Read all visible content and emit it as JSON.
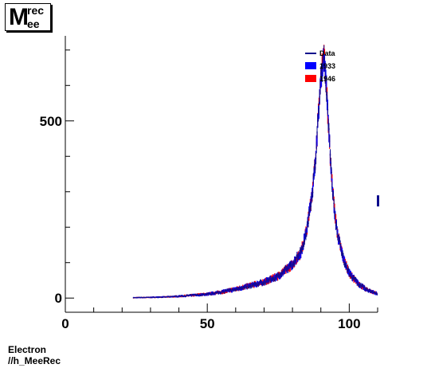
{
  "title": {
    "main": "M",
    "sup": "rec",
    "sub": "ee"
  },
  "caption": {
    "line1": "Electron",
    "line2": "//h_MeeRec"
  },
  "chart_data": {
    "type": "histogram",
    "xlim": [
      0,
      110
    ],
    "ylim": [
      -40,
      740
    ],
    "x_ticks": [
      0,
      50,
      100
    ],
    "y_ticks": [
      0,
      500
    ],
    "legend": {
      "placement": "top-right",
      "entries": [
        {
          "label": "Data",
          "style": "line",
          "color": "#0b0b8c"
        },
        {
          "label": "1933",
          "style": "fill",
          "color": "#0000ff"
        },
        {
          "label": "1946",
          "style": "fill",
          "color": "#ff0000"
        }
      ]
    },
    "series": [
      {
        "name": "Data",
        "color": "#0b0b8c"
      },
      {
        "name": "1933",
        "color": "#0000ff"
      },
      {
        "name": "1946",
        "color": "#ff0000"
      }
    ],
    "curve": {
      "x_range": [
        24,
        110
      ],
      "points": [
        [
          24,
          1
        ],
        [
          30,
          2
        ],
        [
          35,
          3
        ],
        [
          40,
          5
        ],
        [
          45,
          8
        ],
        [
          50,
          11
        ],
        [
          55,
          17
        ],
        [
          60,
          25
        ],
        [
          65,
          35
        ],
        [
          70,
          45
        ],
        [
          75,
          62
        ],
        [
          80,
          95
        ],
        [
          83,
          130
        ],
        [
          85,
          190
        ],
        [
          87,
          300
        ],
        [
          88,
          380
        ],
        [
          89,
          500
        ],
        [
          90,
          620
        ],
        [
          90.8,
          675
        ],
        [
          91.2,
          680
        ],
        [
          92,
          590
        ],
        [
          93,
          440
        ],
        [
          94,
          320
        ],
        [
          95,
          230
        ],
        [
          96,
          175
        ],
        [
          98,
          110
        ],
        [
          100,
          70
        ],
        [
          103,
          42
        ],
        [
          106,
          24
        ],
        [
          110,
          12
        ]
      ]
    }
  }
}
